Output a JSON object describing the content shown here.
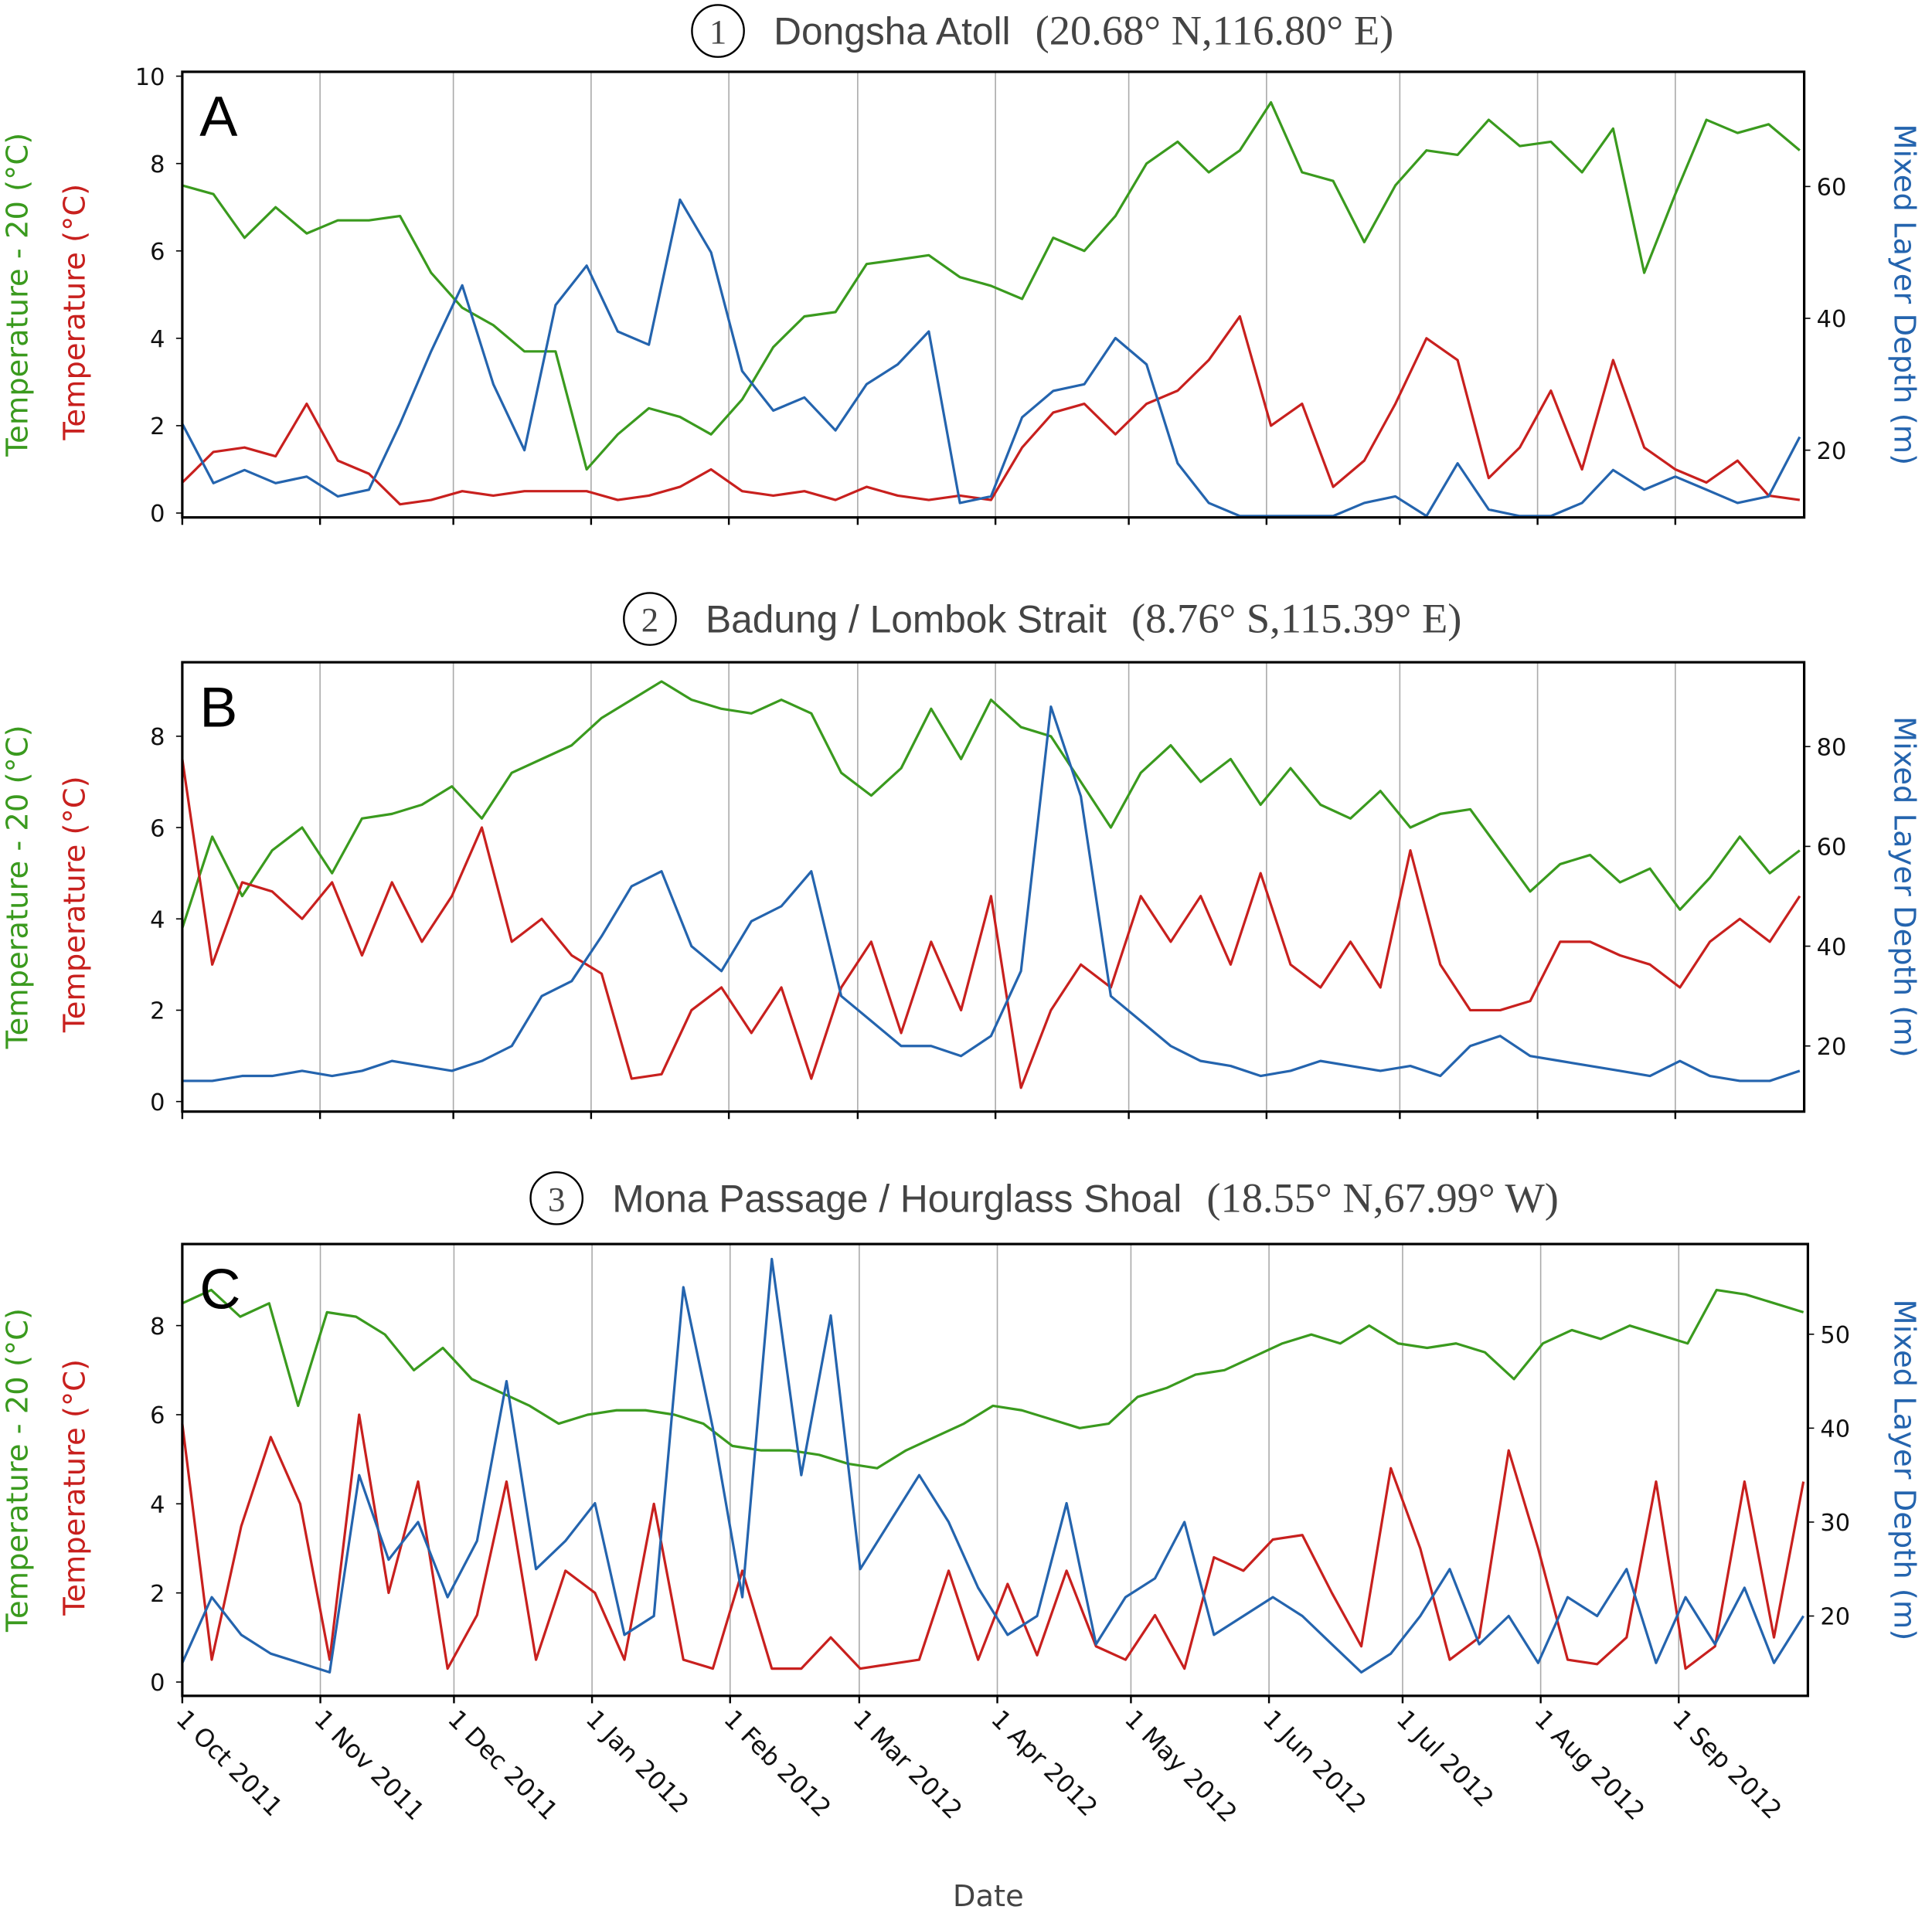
{
  "chart_data": {
    "type": "line",
    "xlabel": "Date",
    "x_range_days": [
      0,
      365
    ],
    "x_ticks": [
      {
        "label": "1 Oct 2011",
        "day": 0
      },
      {
        "label": "1 Nov 2011",
        "day": 31
      },
      {
        "label": "1 Dec 2011",
        "day": 61
      },
      {
        "label": "1 Jan 2012",
        "day": 92
      },
      {
        "label": "1 Feb 2012",
        "day": 123
      },
      {
        "label": "1 Mar 2012",
        "day": 152
      },
      {
        "label": "1 Apr 2012",
        "day": 183
      },
      {
        "label": "1 May 2012",
        "day": 213
      },
      {
        "label": "1 Jun 2012",
        "day": 244
      },
      {
        "label": "1 Jul 2012",
        "day": 274
      },
      {
        "label": "1 Aug 2012",
        "day": 305
      },
      {
        "label": "1 Sep 2012",
        "day": 336
      }
    ],
    "colors": {
      "green": "#3a9a1e",
      "red": "#c8201e",
      "blue": "#2464ae"
    },
    "ylabel_left_green": "Temperature - 20 (°C)",
    "ylabel_left_red": "Temperature (°C)",
    "ylabel_right": "Mixed Layer Depth (m)",
    "panels": [
      {
        "letter": "A",
        "marker": "1",
        "name": "Dongsha Atoll",
        "coords": "(20.68° N,116.80° E)",
        "ylim_left": [
          -0.1,
          10.1
        ],
        "ylim_right": [
          9.8,
          77.4
        ],
        "left_ticks": [
          0,
          2,
          4,
          6,
          8,
          10
        ],
        "right_ticks": [
          20,
          40,
          60
        ],
        "series": [
          {
            "name": "Temperature - 20",
            "color": "green",
            "axis": "left",
            "values": [
              7.5,
              7.3,
              6.3,
              7.0,
              6.4,
              6.7,
              6.7,
              6.8,
              5.5,
              4.7,
              4.3,
              3.7,
              3.7,
              1.0,
              1.8,
              2.4,
              2.2,
              1.8,
              2.6,
              3.8,
              4.5,
              4.6,
              5.7,
              5.8,
              5.9,
              5.4,
              5.2,
              4.9,
              6.3,
              6.0,
              6.8,
              8.0,
              8.5,
              7.8,
              8.3,
              9.4,
              7.8,
              7.6,
              6.2,
              7.5,
              8.3,
              8.2,
              9.0,
              8.4,
              8.5,
              7.8,
              8.8,
              5.5,
              7.3,
              9.0,
              8.7,
              8.9,
              8.3
            ]
          },
          {
            "name": "Temperature",
            "color": "red",
            "axis": "left",
            "values": [
              0.7,
              1.4,
              1.5,
              1.3,
              2.5,
              1.2,
              0.9,
              0.2,
              0.3,
              0.5,
              0.4,
              0.5,
              0.5,
              0.5,
              0.3,
              0.4,
              0.6,
              1.0,
              0.5,
              0.4,
              0.5,
              0.3,
              0.6,
              0.4,
              0.3,
              0.4,
              0.3,
              1.5,
              2.3,
              2.5,
              1.8,
              2.5,
              2.8,
              3.5,
              4.5,
              2.0,
              2.5,
              0.6,
              1.2,
              2.5,
              4.0,
              3.5,
              0.8,
              1.5,
              2.8,
              1.0,
              3.5,
              1.5,
              1.0,
              0.7,
              1.2,
              0.4,
              0.3
            ]
          },
          {
            "name": "Mixed Layer Depth",
            "color": "blue",
            "axis": "right",
            "values": [
              24,
              15,
              17,
              15,
              16,
              13,
              14,
              24,
              35,
              45,
              30,
              20,
              42,
              48,
              38,
              36,
              58,
              50,
              32,
              26,
              28,
              23,
              30,
              33,
              38,
              12,
              13,
              25,
              29,
              30,
              37,
              33,
              18,
              12,
              10,
              10,
              10,
              10,
              12,
              13,
              10,
              18,
              11,
              10,
              10,
              12,
              17,
              14,
              16,
              14,
              12,
              13,
              22
            ]
          }
        ]
      },
      {
        "letter": "B",
        "marker": "2",
        "name": "Badung / Lombok Strait",
        "coords": "(8.76° S,115.39° E)",
        "ylim_left": [
          -0.22,
          9.62
        ],
        "ylim_right": [
          6.85,
          96.9
        ],
        "left_ticks": [
          0,
          2,
          4,
          6,
          8
        ],
        "right_ticks": [
          20,
          40,
          60,
          80
        ],
        "series": [
          {
            "name": "Temperature - 20",
            "color": "green",
            "axis": "left",
            "values": [
              3.8,
              5.8,
              4.5,
              5.5,
              6.0,
              5.0,
              6.2,
              6.3,
              6.5,
              6.9,
              6.2,
              7.2,
              7.5,
              7.8,
              8.4,
              8.8,
              9.2,
              8.8,
              8.6,
              8.5,
              8.8,
              8.5,
              7.2,
              6.7,
              7.3,
              8.6,
              7.5,
              8.8,
              8.2,
              8.0,
              7.0,
              6.0,
              7.2,
              7.8,
              7.0,
              7.5,
              6.5,
              7.3,
              6.5,
              6.2,
              6.8,
              6.0,
              6.3,
              6.4,
              5.5,
              4.6,
              5.2,
              5.4,
              4.8,
              5.1,
              4.2,
              4.9,
              5.8,
              5.0,
              5.5
            ]
          },
          {
            "name": "Temperature",
            "color": "red",
            "axis": "left",
            "values": [
              7.5,
              3.0,
              4.8,
              4.6,
              4.0,
              4.8,
              3.2,
              4.8,
              3.5,
              4.5,
              6.0,
              3.5,
              4.0,
              3.2,
              2.8,
              0.5,
              0.6,
              2.0,
              2.5,
              1.5,
              2.5,
              0.5,
              2.5,
              3.5,
              1.5,
              3.5,
              2.0,
              4.5,
              0.3,
              2.0,
              3.0,
              2.5,
              4.5,
              3.5,
              4.5,
              3.0,
              5.0,
              3.0,
              2.5,
              3.5,
              2.5,
              5.5,
              3.0,
              2.0,
              2.0,
              2.2,
              3.5,
              3.5,
              3.2,
              3.0,
              2.5,
              3.5,
              4.0,
              3.5,
              4.5
            ]
          },
          {
            "name": "Mixed Layer Depth",
            "color": "blue",
            "axis": "right",
            "values": [
              13,
              13,
              14,
              14,
              15,
              14,
              15,
              17,
              16,
              15,
              17,
              20,
              30,
              33,
              42,
              52,
              55,
              40,
              35,
              45,
              48,
              55,
              30,
              25,
              20,
              20,
              18,
              22,
              35,
              88,
              70,
              30,
              25,
              20,
              17,
              16,
              14,
              15,
              17,
              16,
              15,
              16,
              14,
              20,
              22,
              18,
              17,
              16,
              15,
              14,
              17,
              14,
              13,
              13,
              15
            ]
          }
        ]
      },
      {
        "letter": "C",
        "marker": "3",
        "name": "Mona Passage / Hourglass Shoal",
        "coords": "(18.55° N,67.99° W)",
        "ylim_left": [
          -0.31,
          9.83
        ],
        "ylim_right": [
          11.5,
          59.6
        ],
        "left_ticks": [
          0,
          2,
          4,
          6,
          8
        ],
        "right_ticks": [
          20,
          30,
          40,
          50
        ],
        "series": [
          {
            "name": "Temperature - 20",
            "color": "green",
            "axis": "left",
            "values": [
              8.5,
              8.8,
              8.2,
              8.5,
              6.2,
              8.3,
              8.2,
              7.8,
              7.0,
              7.5,
              6.8,
              6.5,
              6.2,
              5.8,
              6.0,
              6.1,
              6.1,
              6.0,
              5.8,
              5.3,
              5.2,
              5.2,
              5.1,
              4.9,
              4.8,
              5.2,
              5.5,
              5.8,
              6.2,
              6.1,
              5.9,
              5.7,
              5.8,
              6.4,
              6.6,
              6.9,
              7.0,
              7.3,
              7.6,
              7.8,
              7.6,
              8.0,
              7.6,
              7.5,
              7.6,
              7.4,
              6.8,
              7.6,
              7.9,
              7.7,
              8.0,
              7.8,
              7.6,
              8.8,
              8.7,
              8.5,
              8.3
            ]
          },
          {
            "name": "Temperature",
            "color": "red",
            "axis": "left",
            "values": [
              5.8,
              0.5,
              3.5,
              5.5,
              4.0,
              0.5,
              6.0,
              2.0,
              4.5,
              0.3,
              1.5,
              4.5,
              0.5,
              2.5,
              2.0,
              0.5,
              4.0,
              0.5,
              0.3,
              2.5,
              0.3,
              0.3,
              1.0,
              0.3,
              0.4,
              0.5,
              2.5,
              0.5,
              2.2,
              0.6,
              2.5,
              0.8,
              0.5,
              1.5,
              0.3,
              2.8,
              2.5,
              3.2,
              3.3,
              2.0,
              0.8,
              4.8,
              3.0,
              0.5,
              1.0,
              5.2,
              3.0,
              0.5,
              0.4,
              1.0,
              4.5,
              0.3,
              0.8,
              4.5,
              1.0,
              4.5
            ]
          },
          {
            "name": "Mixed Layer Depth",
            "color": "blue",
            "axis": "right",
            "values": [
              15,
              22,
              18,
              16,
              15,
              14,
              35,
              26,
              30,
              22,
              28,
              45,
              25,
              28,
              32,
              18,
              20,
              55,
              40,
              22,
              58,
              35,
              52,
              25,
              30,
              35,
              30,
              23,
              18,
              20,
              32,
              17,
              22,
              24,
              30,
              18,
              20,
              22,
              20,
              17,
              14,
              16,
              20,
              25,
              17,
              20,
              15,
              22,
              20,
              25,
              15,
              22,
              17,
              23,
              15,
              20
            ]
          }
        ]
      }
    ]
  }
}
